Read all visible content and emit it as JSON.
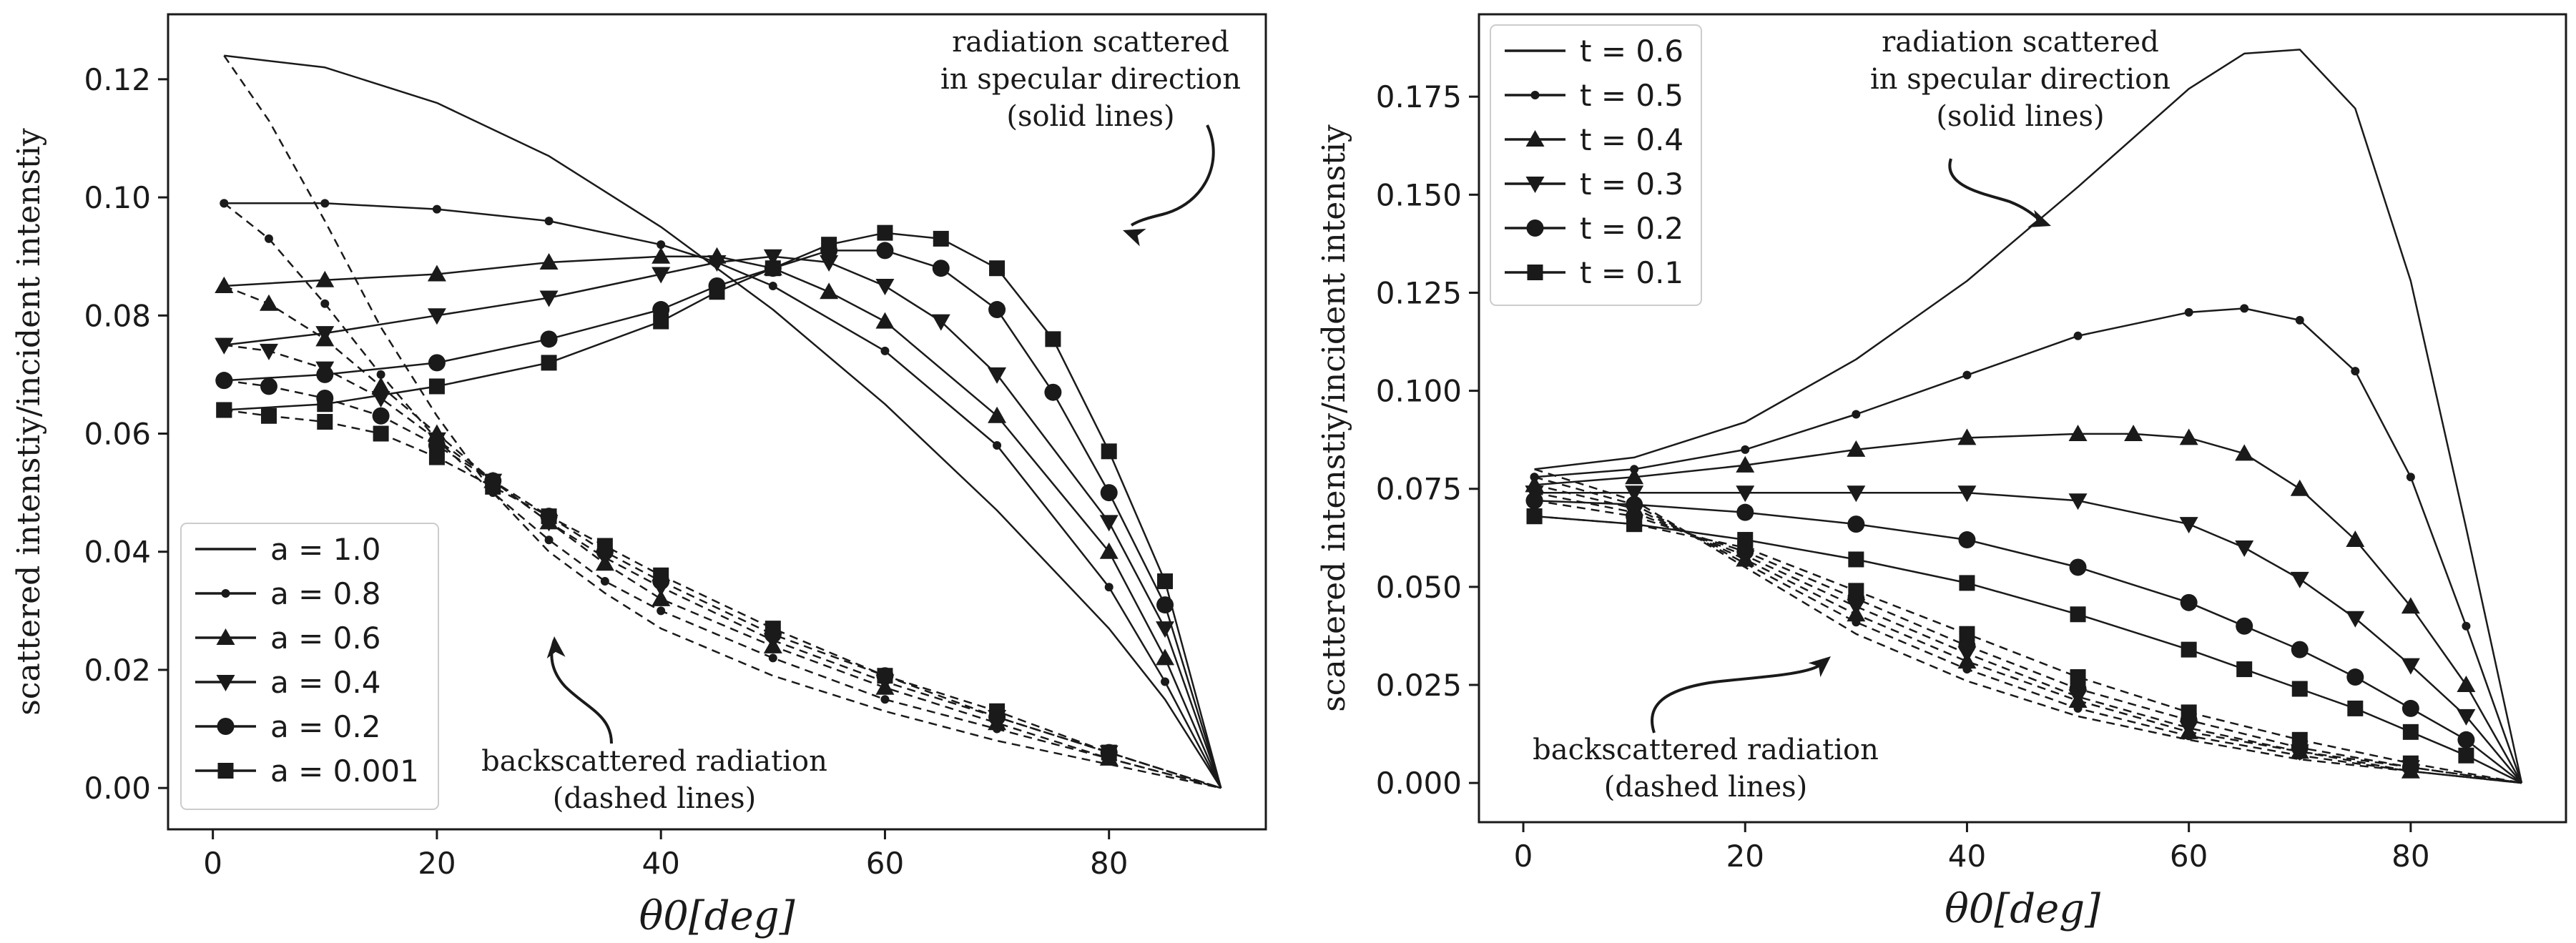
{
  "chart_data": [
    {
      "type": "line",
      "panel": "left",
      "xlabel": "θ0[deg]",
      "ylabel": "scattered intenstiy/incident intenstiy",
      "xlim": [
        -4,
        94
      ],
      "ylim": [
        -0.007,
        0.131
      ],
      "xticks": [
        0,
        20,
        40,
        60,
        80
      ],
      "yticks": [
        0.0,
        0.02,
        0.04,
        0.06,
        0.08,
        0.1,
        0.12
      ],
      "ytick_labels": [
        "0.00",
        "0.02",
        "0.04",
        "0.06",
        "0.08",
        "0.10",
        "0.12"
      ],
      "legend_position": "lower-left",
      "annotations": {
        "top": [
          "radiation scattered",
          "in specular direction",
          "(solid lines)"
        ],
        "bottom": [
          "backscattered radiation",
          "(dashed lines)"
        ]
      },
      "series": [
        {
          "name": "a = 1.0",
          "marker": "none",
          "specular": {
            "x": [
              1,
              10,
              20,
              30,
              40,
              45,
              50,
              60,
              70,
              80,
              85,
              90
            ],
            "y": [
              0.124,
              0.122,
              0.116,
              0.107,
              0.095,
              0.088,
              0.081,
              0.065,
              0.047,
              0.027,
              0.015,
              0.0
            ]
          },
          "back": {
            "x": [
              1,
              5,
              10,
              15,
              20,
              25,
              30,
              35,
              40,
              50,
              60,
              70,
              80,
              90
            ],
            "y": [
              0.124,
              0.113,
              0.096,
              0.078,
              0.063,
              0.05,
              0.04,
              0.033,
              0.027,
              0.019,
              0.013,
              0.008,
              0.004,
              0.0
            ]
          }
        },
        {
          "name": "a = 0.8",
          "marker": "dot",
          "specular": {
            "x": [
              1,
              10,
              20,
              30,
              40,
              45,
              50,
              60,
              70,
              80,
              85,
              90
            ],
            "y": [
              0.099,
              0.099,
              0.098,
              0.096,
              0.092,
              0.089,
              0.085,
              0.074,
              0.058,
              0.034,
              0.018,
              0.0
            ]
          },
          "back": {
            "x": [
              1,
              5,
              10,
              15,
              20,
              25,
              30,
              35,
              40,
              50,
              60,
              70,
              80,
              90
            ],
            "y": [
              0.099,
              0.093,
              0.082,
              0.07,
              0.059,
              0.05,
              0.042,
              0.035,
              0.03,
              0.022,
              0.015,
              0.01,
              0.005,
              0.0
            ]
          }
        },
        {
          "name": "a = 0.6",
          "marker": "triangle-up",
          "specular": {
            "x": [
              1,
              10,
              20,
              30,
              40,
              45,
              50,
              55,
              60,
              70,
              80,
              85,
              90
            ],
            "y": [
              0.085,
              0.086,
              0.087,
              0.089,
              0.09,
              0.09,
              0.088,
              0.084,
              0.079,
              0.063,
              0.04,
              0.022,
              0.0
            ]
          },
          "back": {
            "x": [
              1,
              5,
              10,
              15,
              20,
              25,
              30,
              35,
              40,
              50,
              60,
              70,
              80,
              90
            ],
            "y": [
              0.085,
              0.082,
              0.076,
              0.068,
              0.06,
              0.052,
              0.045,
              0.038,
              0.032,
              0.024,
              0.017,
              0.011,
              0.005,
              0.0
            ]
          }
        },
        {
          "name": "a = 0.4",
          "marker": "triangle-down",
          "specular": {
            "x": [
              1,
              10,
              20,
              30,
              40,
              45,
              50,
              55,
              60,
              65,
              70,
              80,
              85,
              90
            ],
            "y": [
              0.075,
              0.077,
              0.08,
              0.083,
              0.087,
              0.089,
              0.09,
              0.089,
              0.085,
              0.079,
              0.07,
              0.045,
              0.027,
              0.0
            ]
          },
          "back": {
            "x": [
              1,
              5,
              10,
              15,
              20,
              25,
              30,
              35,
              40,
              50,
              60,
              70,
              80,
              90
            ],
            "y": [
              0.075,
              0.074,
              0.071,
              0.066,
              0.059,
              0.052,
              0.045,
              0.039,
              0.034,
              0.025,
              0.018,
              0.012,
              0.006,
              0.0
            ]
          }
        },
        {
          "name": "a = 0.2",
          "marker": "circle",
          "specular": {
            "x": [
              1,
              10,
              20,
              30,
              40,
              45,
              50,
              55,
              60,
              65,
              70,
              75,
              80,
              85,
              90
            ],
            "y": [
              0.069,
              0.07,
              0.072,
              0.076,
              0.081,
              0.085,
              0.088,
              0.091,
              0.091,
              0.088,
              0.081,
              0.067,
              0.05,
              0.031,
              0.0
            ]
          },
          "back": {
            "x": [
              1,
              5,
              10,
              15,
              20,
              25,
              30,
              35,
              40,
              50,
              60,
              70,
              80,
              90
            ],
            "y": [
              0.069,
              0.068,
              0.066,
              0.063,
              0.058,
              0.052,
              0.046,
              0.04,
              0.035,
              0.026,
              0.019,
              0.012,
              0.006,
              0.0
            ]
          }
        },
        {
          "name": "a = 0.001",
          "marker": "square",
          "specular": {
            "x": [
              1,
              10,
              20,
              30,
              40,
              45,
              50,
              55,
              60,
              65,
              70,
              75,
              80,
              85,
              90
            ],
            "y": [
              0.064,
              0.065,
              0.068,
              0.072,
              0.079,
              0.084,
              0.088,
              0.092,
              0.094,
              0.093,
              0.088,
              0.076,
              0.057,
              0.035,
              0.0
            ]
          },
          "back": {
            "x": [
              1,
              5,
              10,
              15,
              20,
              25,
              30,
              35,
              40,
              50,
              60,
              70,
              80,
              90
            ],
            "y": [
              0.064,
              0.063,
              0.062,
              0.06,
              0.056,
              0.051,
              0.046,
              0.041,
              0.036,
              0.027,
              0.019,
              0.013,
              0.006,
              0.0
            ]
          }
        }
      ]
    },
    {
      "type": "line",
      "panel": "right",
      "xlabel": "θ0[deg]",
      "ylabel": "scattered intenstiy/incident intenstiy",
      "xlim": [
        -4,
        94
      ],
      "ylim": [
        -0.01,
        0.196
      ],
      "xticks": [
        0,
        20,
        40,
        60,
        80
      ],
      "yticks": [
        0.0,
        0.025,
        0.05,
        0.075,
        0.1,
        0.125,
        0.15,
        0.175
      ],
      "ytick_labels": [
        "0.000",
        "0.025",
        "0.050",
        "0.075",
        "0.100",
        "0.125",
        "0.150",
        "0.175"
      ],
      "legend_position": "upper-left",
      "annotations": {
        "top": [
          "radiation scattered",
          "in specular direction",
          "(solid lines)"
        ],
        "bottom": [
          "backscattered radiation",
          "(dashed lines)"
        ]
      },
      "series": [
        {
          "name": "t = 0.6",
          "marker": "none",
          "specular": {
            "x": [
              1,
              10,
              20,
              30,
              40,
              50,
              60,
              65,
              70,
              75,
              80,
              85,
              90
            ],
            "y": [
              0.08,
              0.083,
              0.092,
              0.108,
              0.128,
              0.152,
              0.177,
              0.186,
              0.187,
              0.172,
              0.128,
              0.065,
              0.0
            ]
          },
          "back": {
            "x": [
              1,
              10,
              20,
              30,
              40,
              50,
              60,
              70,
              80,
              90
            ],
            "y": [
              0.08,
              0.072,
              0.055,
              0.038,
              0.026,
              0.017,
              0.011,
              0.006,
              0.003,
              0.0
            ]
          }
        },
        {
          "name": "t = 0.5",
          "marker": "dot",
          "specular": {
            "x": [
              1,
              10,
              20,
              30,
              40,
              50,
              60,
              65,
              70,
              75,
              80,
              85,
              90
            ],
            "y": [
              0.078,
              0.08,
              0.085,
              0.094,
              0.104,
              0.114,
              0.12,
              0.121,
              0.118,
              0.105,
              0.078,
              0.04,
              0.0
            ]
          },
          "back": {
            "x": [
              1,
              10,
              20,
              30,
              40,
              50,
              60,
              70,
              80,
              90
            ],
            "y": [
              0.078,
              0.071,
              0.056,
              0.041,
              0.029,
              0.019,
              0.012,
              0.007,
              0.003,
              0.0
            ]
          }
        },
        {
          "name": "t = 0.4",
          "marker": "triangle-up",
          "specular": {
            "x": [
              1,
              10,
              20,
              30,
              40,
              50,
              55,
              60,
              65,
              70,
              75,
              80,
              85,
              90
            ],
            "y": [
              0.076,
              0.078,
              0.081,
              0.085,
              0.088,
              0.089,
              0.089,
              0.088,
              0.084,
              0.075,
              0.062,
              0.045,
              0.025,
              0.0
            ]
          },
          "back": {
            "x": [
              1,
              10,
              20,
              30,
              40,
              50,
              60,
              70,
              80,
              90
            ],
            "y": [
              0.076,
              0.07,
              0.057,
              0.043,
              0.031,
              0.021,
              0.013,
              0.008,
              0.003,
              0.0
            ]
          }
        },
        {
          "name": "t = 0.3",
          "marker": "triangle-down",
          "specular": {
            "x": [
              1,
              10,
              20,
              30,
              40,
              50,
              60,
              65,
              70,
              75,
              80,
              85,
              90
            ],
            "y": [
              0.074,
              0.074,
              0.074,
              0.074,
              0.074,
              0.072,
              0.066,
              0.06,
              0.052,
              0.042,
              0.03,
              0.017,
              0.0
            ]
          },
          "back": {
            "x": [
              1,
              10,
              20,
              30,
              40,
              50,
              60,
              70,
              80,
              90
            ],
            "y": [
              0.074,
              0.069,
              0.058,
              0.045,
              0.033,
              0.022,
              0.014,
              0.008,
              0.004,
              0.0
            ]
          }
        },
        {
          "name": "t = 0.2",
          "marker": "circle",
          "specular": {
            "x": [
              1,
              10,
              20,
              30,
              40,
              50,
              60,
              65,
              70,
              75,
              80,
              85,
              90
            ],
            "y": [
              0.072,
              0.071,
              0.069,
              0.066,
              0.062,
              0.055,
              0.046,
              0.04,
              0.034,
              0.027,
              0.019,
              0.011,
              0.0
            ]
          },
          "back": {
            "x": [
              1,
              10,
              20,
              30,
              40,
              50,
              60,
              70,
              80,
              90
            ],
            "y": [
              0.072,
              0.068,
              0.059,
              0.047,
              0.035,
              0.024,
              0.016,
              0.009,
              0.004,
              0.0
            ]
          }
        },
        {
          "name": "t = 0.1",
          "marker": "square",
          "specular": {
            "x": [
              1,
              10,
              20,
              30,
              40,
              50,
              60,
              65,
              70,
              75,
              80,
              85,
              90
            ],
            "y": [
              0.068,
              0.066,
              0.062,
              0.057,
              0.051,
              0.043,
              0.034,
              0.029,
              0.024,
              0.019,
              0.013,
              0.007,
              0.0
            ]
          },
          "back": {
            "x": [
              1,
              10,
              20,
              30,
              40,
              50,
              60,
              70,
              80,
              90
            ],
            "y": [
              0.068,
              0.066,
              0.06,
              0.049,
              0.038,
              0.027,
              0.018,
              0.011,
              0.005,
              0.0
            ]
          }
        }
      ]
    }
  ],
  "colors": {
    "ink": "#1a1a1a",
    "background": "#ffffff"
  }
}
